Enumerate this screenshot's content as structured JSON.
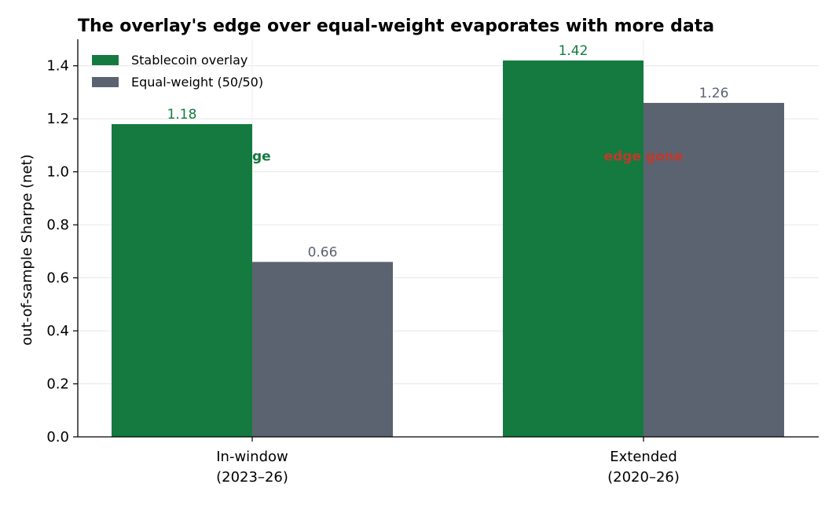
{
  "chart_data": {
    "type": "bar",
    "title": "The overlay's edge over equal-weight evaporates with more data",
    "xlabel": "",
    "ylabel": "out-of-sample Sharpe (net)",
    "ylim": [
      0,
      1.5
    ],
    "yticks": [
      "0.0",
      "0.2",
      "0.4",
      "0.6",
      "0.8",
      "1.0",
      "1.2",
      "1.4"
    ],
    "categories": [
      [
        "In-window",
        "(2023–26)"
      ],
      [
        "Extended",
        "(2020–26)"
      ]
    ],
    "series": [
      {
        "name": "Stablecoin overlay",
        "values": [
          1.18,
          1.42
        ],
        "labels": [
          "1.18",
          "1.42"
        ],
        "color": "#157a3f"
      },
      {
        "name": "Equal-weight (50/50)",
        "values": [
          0.66,
          1.26
        ],
        "labels": [
          "0.66",
          "1.26"
        ],
        "color": "#5c6370"
      }
    ],
    "annotations": [
      {
        "category": 0,
        "text": "edge",
        "y": 1.06,
        "color": "#157a3f"
      },
      {
        "category": 1,
        "text": "edge gone",
        "y": 1.06,
        "color": "#c0392b"
      }
    ],
    "grid": true,
    "legend_position": "top-left"
  }
}
